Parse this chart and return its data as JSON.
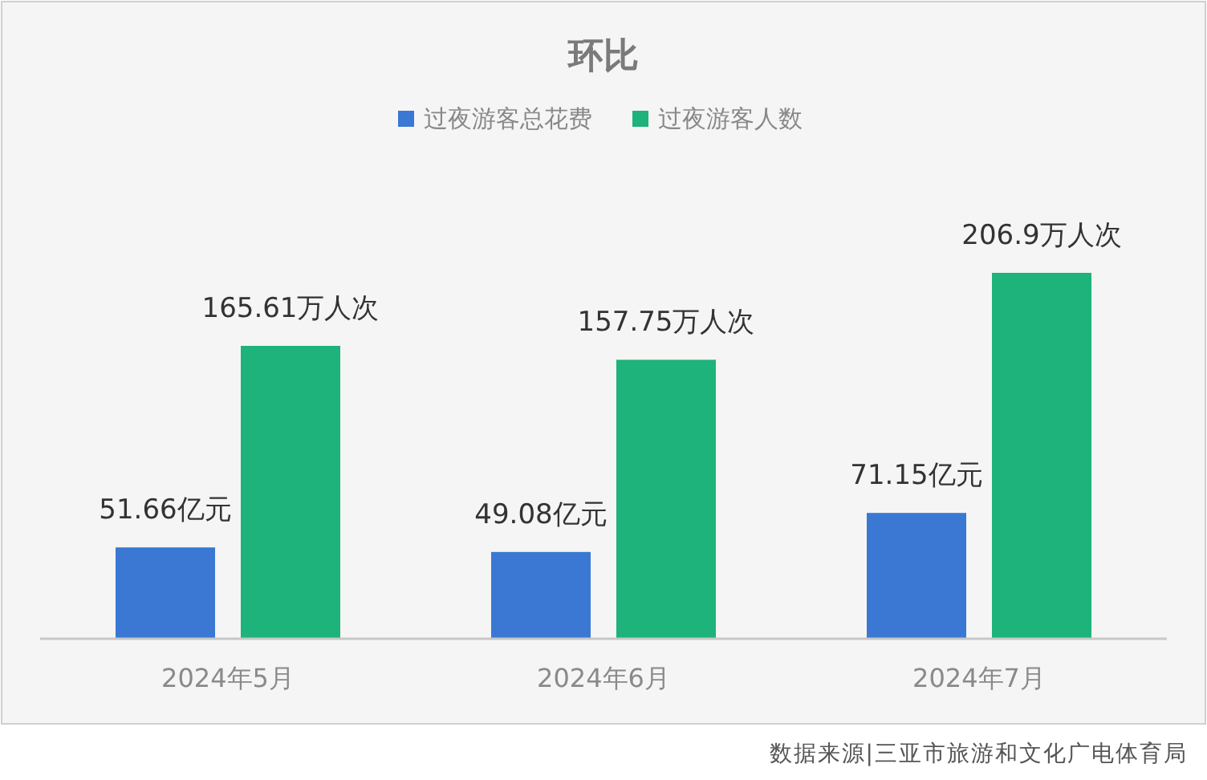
{
  "chart_data": {
    "type": "bar",
    "title": "环比",
    "categories": [
      "2024年5月",
      "2024年6月",
      "2024年7月"
    ],
    "series": [
      {
        "name": "过夜游客总花费",
        "color": "#3a78d4",
        "values": [
          51.66,
          49.08,
          71.15
        ],
        "value_labels": [
          "51.66亿元",
          "49.08亿元",
          "71.15亿元"
        ]
      },
      {
        "name": "过夜游客人数",
        "color": "#1db37a",
        "values": [
          165.61,
          157.75,
          206.9
        ],
        "value_labels": [
          "165.61万人次",
          "157.75万人次",
          "206.9万人次"
        ]
      }
    ],
    "legend": "top",
    "grid": false,
    "annotations": [
      "数据来源|三亚市旅游和文化广电体育局"
    ]
  }
}
